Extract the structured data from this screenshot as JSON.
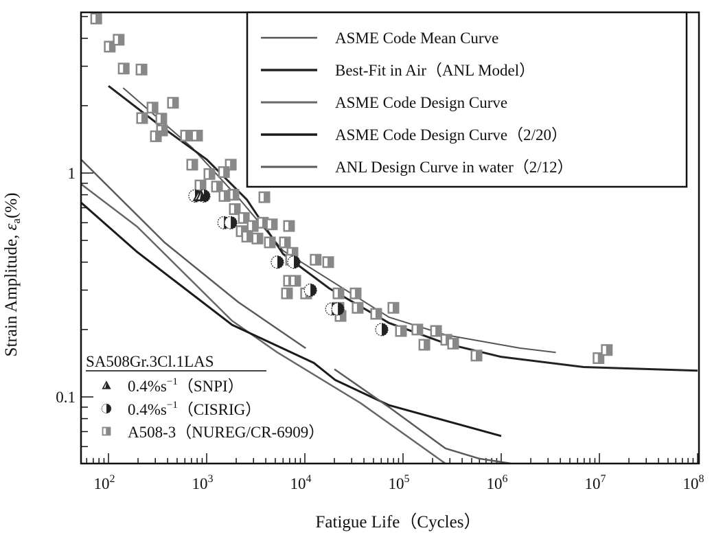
{
  "chart_data": {
    "type": "scatter",
    "title": "",
    "xlabel": "Fatigue Life（Cycles）",
    "ylabel": {
      "main": "Strain Amplitude, ",
      "symbol": "ε",
      "sub": "a",
      "unit": "(%)"
    },
    "xscale": "log",
    "yscale": "log",
    "xlim": [
      52,
      100000000
    ],
    "ylim": [
      0.05,
      5.2
    ],
    "grid": false,
    "x_ticks": [
      {
        "value": 100,
        "base": "10",
        "exp": "2"
      },
      {
        "value": 1000,
        "base": "10",
        "exp": "3"
      },
      {
        "value": 10000,
        "base": "10",
        "exp": "4"
      },
      {
        "value": 100000,
        "base": "10",
        "exp": "5"
      },
      {
        "value": 1000000,
        "base": "10",
        "exp": "6"
      },
      {
        "value": 10000000,
        "base": "10",
        "exp": "7"
      },
      {
        "value": 100000000,
        "base": "10",
        "exp": "8"
      }
    ],
    "y_ticks": [
      {
        "value": 0.1,
        "label": "0.1"
      },
      {
        "value": 1,
        "label": "1"
      }
    ],
    "legend_placement": "top-right",
    "series": [
      {
        "name": "ASME Code Mean Curve",
        "kind": "line",
        "color": "#555555",
        "width": 2,
        "points": [
          [
            141,
            2.4
          ],
          [
            708,
            1.3
          ],
          [
            2190,
            0.76
          ],
          [
            6000,
            0.45
          ],
          [
            72000,
            0.227
          ],
          [
            275000,
            0.189
          ],
          [
            1580000,
            0.165
          ],
          [
            3600000,
            0.158
          ]
        ]
      },
      {
        "name": "Best-Fit in Air（ANL Model）",
        "kind": "line",
        "color": "#222222",
        "width": 3,
        "points": [
          [
            100,
            2.45
          ],
          [
            316,
            1.66
          ],
          [
            1000,
            1.15
          ],
          [
            2570,
            0.76
          ],
          [
            6000,
            0.435
          ],
          [
            17800,
            0.305
          ],
          [
            72000,
            0.214
          ],
          [
            275000,
            0.173
          ],
          [
            1000000,
            0.151
          ],
          [
            6900000,
            0.136
          ],
          [
            100000000,
            0.131
          ]
        ]
      },
      {
        "name": "ASME Code Design Curve",
        "kind": "line",
        "color": "#666666",
        "width": 2.5,
        "points": [
          [
            52,
            0.893
          ],
          [
            196,
            0.576
          ],
          [
            1810,
            0.219
          ],
          [
            5250,
            0.158
          ],
          [
            37000,
            0.0938
          ],
          [
            270000,
            0.05
          ]
        ]
      },
      {
        "name": "ASME Code Design Curve（2/20）",
        "kind": "line",
        "color": "#1a1a1a",
        "width": 3,
        "points": [
          [
            52,
            0.738
          ],
          [
            196,
            0.444
          ],
          [
            1810,
            0.21
          ],
          [
            12300,
            0.142
          ],
          [
            20400,
            0.119
          ],
          [
            72000,
            0.0918
          ],
          [
            1000000,
            0.0669
          ]
        ]
      },
      {
        "name": "ANL Design Curve in water（2/12）",
        "kind": "line",
        "color": "#5a5a5a",
        "width": 2.5,
        "segments": [
          [
            [
              52,
              1.15
            ],
            [
              372,
              0.49
            ],
            [
              2100,
              0.265
            ],
            [
              10200,
              0.165
            ]
          ],
          [
            [
              20000,
              0.133
            ],
            [
              72000,
              0.09
            ],
            [
              270000,
              0.0589
            ],
            [
              600000,
              0.053
            ],
            [
              1260000,
              0.05
            ]
          ]
        ]
      }
    ],
    "scatter_series": [
      {
        "name": "0.4%s-1（SNPI）",
        "marker": "triangle",
        "points": [
          [
            830,
            0.79
          ],
          [
            880,
            0.79
          ]
        ]
      },
      {
        "name": "0.4%s-1（CISRIG）",
        "marker": "half-circle",
        "points": [
          [
            760,
            0.79
          ],
          [
            937,
            0.79
          ],
          [
            1500,
            0.6
          ],
          [
            1760,
            0.6
          ],
          [
            5250,
            0.4
          ],
          [
            7730,
            0.4
          ],
          [
            11400,
            0.3
          ],
          [
            18800,
            0.247
          ],
          [
            21700,
            0.247
          ],
          [
            60700,
            0.2
          ]
        ]
      },
      {
        "name": "A508-3（NUREG/CR-6909）",
        "marker": "half-square",
        "points": [
          [
            75,
            4.9
          ],
          [
            103,
            3.67
          ],
          [
            127,
            3.94
          ],
          [
            143,
            2.93
          ],
          [
            217,
            2.9
          ],
          [
            281,
            1.96
          ],
          [
            220,
            1.76
          ],
          [
            345,
            1.75
          ],
          [
            351,
            1.55
          ],
          [
            304,
            1.46
          ],
          [
            454,
            2.06
          ],
          [
            617,
            1.47
          ],
          [
            798,
            1.47
          ],
          [
            713,
            1.09
          ],
          [
            865,
            0.88
          ],
          [
            1067,
            0.99
          ],
          [
            1760,
            1.09
          ],
          [
            1500,
            1.01
          ],
          [
            1274,
            0.87
          ],
          [
            1875,
            0.8
          ],
          [
            1520,
            0.79
          ],
          [
            1935,
            0.69
          ],
          [
            2390,
            0.63
          ],
          [
            2275,
            0.55
          ],
          [
            2590,
            0.52
          ],
          [
            2945,
            0.58
          ],
          [
            3290,
            0.51
          ],
          [
            3870,
            0.78
          ],
          [
            3740,
            0.6
          ],
          [
            4400,
            0.49
          ],
          [
            4610,
            0.59
          ],
          [
            6270,
            0.49
          ],
          [
            6900,
            0.58
          ],
          [
            7480,
            0.44
          ],
          [
            7250,
            0.41
          ],
          [
            6900,
            0.33
          ],
          [
            7980,
            0.33
          ],
          [
            6580,
            0.29
          ],
          [
            12900,
            0.41
          ],
          [
            17300,
            0.4
          ],
          [
            10300,
            0.29
          ],
          [
            22000,
            0.29
          ],
          [
            32900,
            0.29
          ],
          [
            22000,
            0.25
          ],
          [
            34500,
            0.25
          ],
          [
            23100,
            0.23
          ],
          [
            53300,
            0.235
          ],
          [
            79800,
            0.25
          ],
          [
            95300,
            0.197
          ],
          [
            140000,
            0.2
          ],
          [
            217000,
            0.197
          ],
          [
            165000,
            0.171
          ],
          [
            276000,
            0.18
          ],
          [
            324000,
            0.173
          ],
          [
            560000,
            0.153
          ],
          [
            9800000,
            0.149
          ],
          [
            11900000,
            0.162
          ]
        ]
      }
    ],
    "legend": {
      "lines": [
        "ASME Code Mean Curve",
        "Best-Fit in Air（ANL Model）",
        "ASME Code Design Curve",
        "ASME Code Design Curve（2/20）",
        "ANL Design Curve in water（2/12）"
      ],
      "markers_title": "SA508Gr.3Cl.1LAS",
      "markers": [
        {
          "pre": "0.4%s",
          "sup": "−1",
          "post": "（SNPI）"
        },
        {
          "pre": "0.4%s",
          "sup": "−1",
          "post": "（CISRIG）"
        },
        {
          "pre": "A508-3（NUREG/CR-6909）",
          "sup": "",
          "post": ""
        }
      ]
    }
  }
}
